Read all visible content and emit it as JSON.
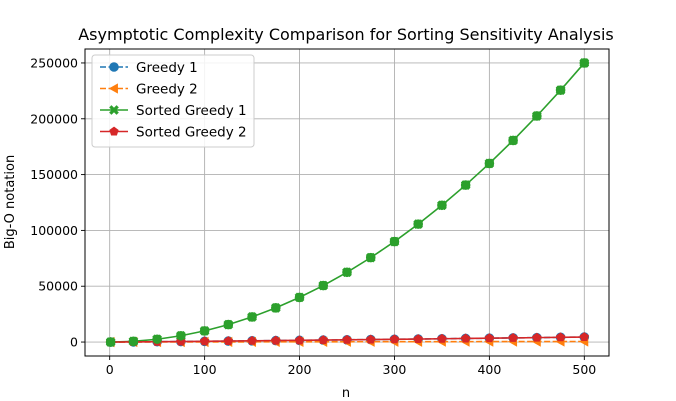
{
  "chart_data": {
    "type": "line",
    "title": "Asymptotic Complexity Comparison for Sorting Sensitivity Analysis",
    "xlabel": "n",
    "ylabel": "Big-O notation",
    "xlim": [
      -26,
      526
    ],
    "ylim": [
      -12500,
      262500
    ],
    "xticks": [
      0,
      100,
      200,
      300,
      400,
      500
    ],
    "yticks": [
      0,
      50000,
      100000,
      150000,
      200000,
      250000
    ],
    "grid": true,
    "legend_position": "top-left",
    "x": [
      1,
      25,
      50,
      75,
      100,
      125,
      150,
      175,
      200,
      225,
      250,
      275,
      300,
      325,
      350,
      375,
      400,
      425,
      450,
      475,
      500
    ],
    "series": [
      {
        "name": "Greedy 1",
        "color": "#1f77b4",
        "linestyle": "dashed",
        "marker": "circle",
        "values": [
          0,
          116,
          282,
          467,
          664,
          871,
          1084,
          1304,
          1529,
          1758,
          1991,
          2228,
          2469,
          2712,
          2959,
          3208,
          3458,
          3712,
          3968,
          4226,
          4483
        ]
      },
      {
        "name": "Greedy 2",
        "color": "#ff7f0e",
        "linestyle": "dashed",
        "marker": "triangle-left",
        "values": [
          1,
          25,
          50,
          75,
          100,
          125,
          150,
          175,
          200,
          225,
          250,
          275,
          300,
          325,
          350,
          375,
          400,
          425,
          450,
          475,
          500
        ]
      },
      {
        "name": "Sorted Greedy 1",
        "color": "#2ca02c",
        "linestyle": "solid",
        "marker": "x",
        "values": [
          1,
          625,
          2500,
          5625,
          10000,
          15625,
          22500,
          30625,
          40000,
          50625,
          62500,
          75625,
          90000,
          105625,
          122500,
          140625,
          160000,
          180625,
          202500,
          225625,
          250000
        ]
      },
      {
        "name": "Sorted Greedy 2",
        "color": "#d62728",
        "linestyle": "solid",
        "marker": "pentagon",
        "values": [
          0,
          116,
          282,
          467,
          664,
          871,
          1084,
          1304,
          1529,
          1758,
          1991,
          2228,
          2469,
          2712,
          2959,
          3208,
          3458,
          3712,
          3968,
          4226,
          4483
        ]
      }
    ],
    "overlay_markers": {
      "series": "Sorted Greedy 1",
      "marker": "circle",
      "color": "#2ca02c"
    }
  }
}
